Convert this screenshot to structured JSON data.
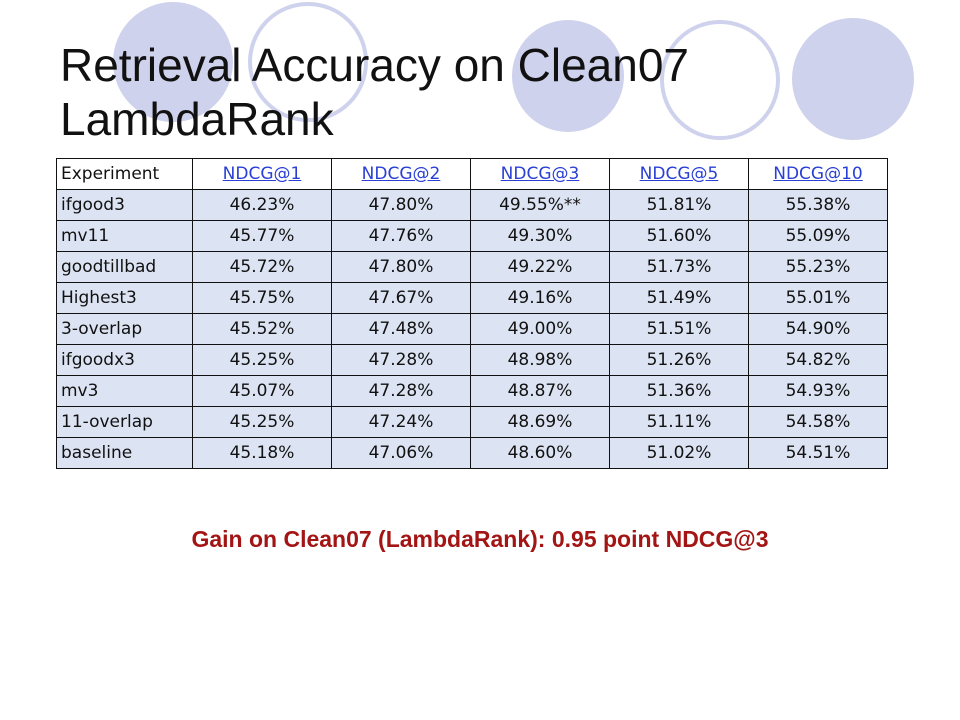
{
  "slide": {
    "title_line1": "Retrieval Accuracy on Clean07",
    "title_line2": "LambdaRank"
  },
  "table": {
    "headers": [
      "Experiment",
      "NDCG@1",
      "NDCG@2",
      "NDCG@3",
      "NDCG@5",
      "NDCG@10"
    ],
    "rows": [
      [
        "ifgood3",
        "46.23%",
        "47.80%",
        "49.55%**",
        "51.81%",
        "55.38%"
      ],
      [
        "mv11",
        "45.77%",
        "47.76%",
        "49.30%",
        "51.60%",
        "55.09%"
      ],
      [
        "goodtillbad",
        "45.72%",
        "47.80%",
        "49.22%",
        "51.73%",
        "55.23%"
      ],
      [
        "Highest3",
        "45.75%",
        "47.67%",
        "49.16%",
        "51.49%",
        "55.01%"
      ],
      [
        "3-overlap",
        "45.52%",
        "47.48%",
        "49.00%",
        "51.51%",
        "54.90%"
      ],
      [
        "ifgoodx3",
        "45.25%",
        "47.28%",
        "48.98%",
        "51.26%",
        "54.82%"
      ],
      [
        "mv3",
        "45.07%",
        "47.28%",
        "48.87%",
        "51.36%",
        "54.93%"
      ],
      [
        "11-overlap",
        "45.25%",
        "47.24%",
        "48.69%",
        "51.11%",
        "54.58%"
      ],
      [
        "baseline",
        "45.18%",
        "47.06%",
        "48.60%",
        "51.02%",
        "54.51%"
      ]
    ]
  },
  "footer": {
    "gain_text": "Gain on Clean07 (LambdaRank): 0.95 point NDCG@3"
  },
  "colors": {
    "decor_circle": "#cfd2ec",
    "row_fill": "#dce3f2",
    "link": "#2a3fd6",
    "gain_text": "#a31515"
  }
}
